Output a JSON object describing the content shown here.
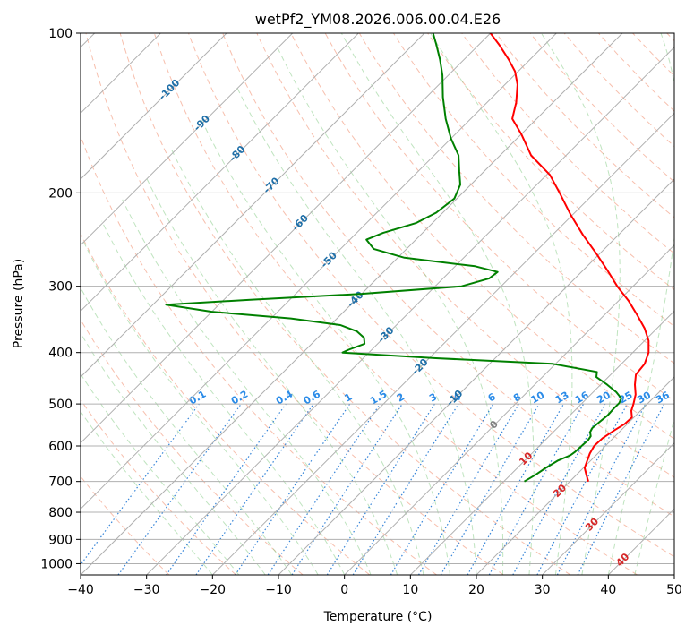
{
  "chart_data": {
    "type": "line",
    "title": "wetPf2_YM08.2026.006.00.04.E26",
    "xlabel": "Temperature (°C)",
    "ylabel": "Pressure (hPa)",
    "xlim": [
      -40,
      50
    ],
    "ylim": [
      1050,
      100
    ],
    "y_scale": "log",
    "grid": true,
    "x_ticks": [
      -40,
      -30,
      -20,
      -10,
      0,
      10,
      20,
      30,
      40,
      50
    ],
    "y_ticks": [
      100,
      200,
      300,
      400,
      500,
      600,
      700,
      800,
      900,
      1000
    ],
    "isotherm_labels": [
      {
        "label": "-100",
        "t": -100,
        "p": 128
      },
      {
        "label": "-90",
        "t": -90,
        "p": 148
      },
      {
        "label": "-80",
        "t": -80,
        "p": 169
      },
      {
        "label": "-70",
        "t": -70,
        "p": 194
      },
      {
        "label": "-60",
        "t": -60,
        "p": 228
      },
      {
        "label": "-50",
        "t": -50,
        "p": 268
      },
      {
        "label": "-40",
        "t": -40,
        "p": 318
      },
      {
        "label": "-30",
        "t": -30,
        "p": 371
      },
      {
        "label": "-20",
        "t": -20,
        "p": 426
      },
      {
        "label": "-10",
        "t": -10,
        "p": 488
      },
      {
        "label": "0",
        "t": 0,
        "p": 548,
        "color": "#808080"
      },
      {
        "label": "10",
        "t": 10,
        "p": 635,
        "color": "#d62728"
      },
      {
        "label": "20",
        "t": 20,
        "p": 730,
        "color": "#d62728"
      },
      {
        "label": "30",
        "t": 30,
        "p": 845,
        "color": "#d62728"
      },
      {
        "label": "40",
        "t": 40,
        "p": 985,
        "color": "#d62728"
      }
    ],
    "mixing_ratio_labels": [
      "0.1",
      "0.2",
      "0.4",
      "0.6",
      "1",
      "1.5",
      "2",
      "3",
      "4",
      "6",
      "8",
      "10",
      "13",
      "16",
      "20",
      "25",
      "30",
      "36"
    ],
    "mixing_ratio_values": [
      0.1,
      0.2,
      0.4,
      0.6,
      1,
      1.5,
      2,
      3,
      4,
      6,
      8,
      10,
      13,
      16,
      20,
      25,
      30,
      36
    ],
    "mixing_ratio_label_pressure": 500,
    "series": [
      {
        "color": "#ff0000",
        "points": [
          [
            700,
            22.8
          ],
          [
            680,
            21.5
          ],
          [
            660,
            20.2
          ],
          [
            640,
            19.5
          ],
          [
            620,
            18.8
          ],
          [
            600,
            18.3
          ],
          [
            580,
            18.4
          ],
          [
            560,
            19.0
          ],
          [
            545,
            19.6
          ],
          [
            530,
            19.7
          ],
          [
            515,
            18.6
          ],
          [
            500,
            17.9
          ],
          [
            480,
            16.8
          ],
          [
            460,
            15.2
          ],
          [
            440,
            13.8
          ],
          [
            420,
            13.5
          ],
          [
            400,
            12.4
          ],
          [
            380,
            10.6
          ],
          [
            360,
            8.1
          ],
          [
            340,
            5.0
          ],
          [
            320,
            1.6
          ],
          [
            300,
            -2.4
          ],
          [
            280,
            -6.3
          ],
          [
            260,
            -10.6
          ],
          [
            240,
            -15.4
          ],
          [
            220,
            -20.3
          ],
          [
            200,
            -25.3
          ],
          [
            185,
            -29.5
          ],
          [
            170,
            -35.3
          ],
          [
            155,
            -40.0
          ],
          [
            145,
            -43.7
          ],
          [
            135,
            -45.6
          ],
          [
            125,
            -48.1
          ],
          [
            118,
            -50.5
          ],
          [
            112,
            -53.3
          ],
          [
            105,
            -57.0
          ],
          [
            100,
            -60.0
          ]
        ]
      },
      {
        "color": "#008000",
        "points": [
          [
            700,
            13.1
          ],
          [
            680,
            13.8
          ],
          [
            660,
            14.3
          ],
          [
            640,
            15.0
          ],
          [
            625,
            16.1
          ],
          [
            615,
            16.3
          ],
          [
            600,
            16.4
          ],
          [
            585,
            16.5
          ],
          [
            575,
            16.3
          ],
          [
            565,
            15.6
          ],
          [
            555,
            15.3
          ],
          [
            540,
            15.5
          ],
          [
            525,
            15.7
          ],
          [
            510,
            15.6
          ],
          [
            498,
            15.6
          ],
          [
            488,
            15.2
          ],
          [
            475,
            13.5
          ],
          [
            460,
            11.0
          ],
          [
            445,
            8.2
          ],
          [
            435,
            7.5
          ],
          [
            420,
            -0.5
          ],
          [
            410,
            -19.0
          ],
          [
            400,
            -34.0
          ],
          [
            395,
            -33.5
          ],
          [
            385,
            -32.0
          ],
          [
            375,
            -33.0
          ],
          [
            365,
            -35.0
          ],
          [
            355,
            -38.5
          ],
          [
            345,
            -47.0
          ],
          [
            335,
            -60.0
          ],
          [
            325,
            -68.0
          ],
          [
            318,
            -56.0
          ],
          [
            310,
            -40.0
          ],
          [
            300,
            -26.0
          ],
          [
            290,
            -23.0
          ],
          [
            282,
            -22.7
          ],
          [
            275,
            -27.0
          ],
          [
            265,
            -39.0
          ],
          [
            255,
            -45.0
          ],
          [
            245,
            -47.5
          ],
          [
            238,
            -46.0
          ],
          [
            228,
            -42.5
          ],
          [
            218,
            -41.0
          ],
          [
            205,
            -40.4
          ],
          [
            193,
            -41.6
          ],
          [
            182,
            -43.8
          ],
          [
            170,
            -46.3
          ],
          [
            158,
            -50.0
          ],
          [
            145,
            -53.8
          ],
          [
            132,
            -57.5
          ],
          [
            120,
            -60.9
          ],
          [
            112,
            -63.7
          ],
          [
            105,
            -66.5
          ],
          [
            100,
            -68.7
          ]
        ]
      }
    ]
  }
}
